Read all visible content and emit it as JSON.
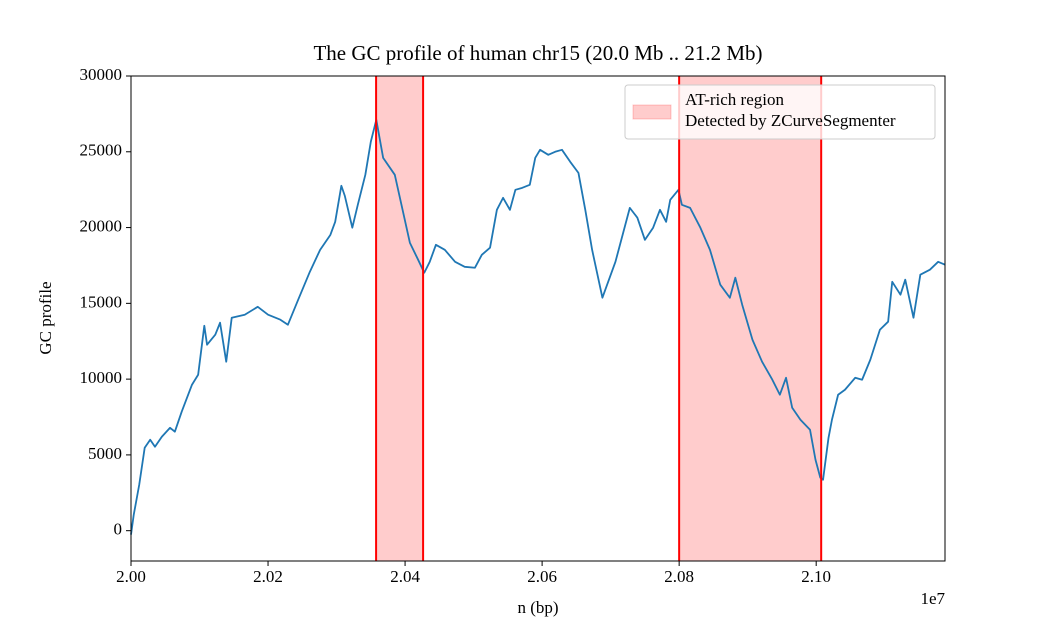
{
  "chart_data": {
    "type": "line",
    "title": "The GC profile of human chr15 (20.0 Mb .. 21.2 Mb)",
    "x_label": "n (bp)",
    "y_label": "GC profile",
    "x_offset_label": "1e7",
    "xlim": [
      20000000,
      21188000
    ],
    "ylim": [
      -2000,
      30000
    ],
    "xticks": [
      {
        "value": 20000000,
        "label": "2.00"
      },
      {
        "value": 20200000,
        "label": "2.02"
      },
      {
        "value": 20400000,
        "label": "2.04"
      },
      {
        "value": 20600000,
        "label": "2.06"
      },
      {
        "value": 20800000,
        "label": "2.08"
      },
      {
        "value": 21000000,
        "label": "2.10"
      }
    ],
    "yticks": [
      0,
      5000,
      10000,
      15000,
      20000,
      25000,
      30000
    ],
    "grid": false,
    "legend_position": "upper right",
    "span_color": "#ff0000",
    "span_label": [
      "AT-rich region",
      "Detected by ZCurveSegmenter"
    ],
    "spans": [
      {
        "x0": 20357700,
        "x1": 20426300
      },
      {
        "x0": 20800000,
        "x1": 21007300
      }
    ],
    "x": [
      20000000,
      20004000,
      20012000,
      20020000,
      20028000,
      20035000,
      20045000,
      20057000,
      20064000,
      20074000,
      20089000,
      20098000,
      20107000,
      20111000,
      20123000,
      20130000,
      20139000,
      20147000,
      20166000,
      20185000,
      20200000,
      20218000,
      20229000,
      20244000,
      20261000,
      20276000,
      20291000,
      20298000,
      20307000,
      20312000,
      20323000,
      20331000,
      20342000,
      20350000,
      20358000,
      20368000,
      20385000,
      20397000,
      20407000,
      20419000,
      20428000,
      20436000,
      20445000,
      20458000,
      20473000,
      20487000,
      20502000,
      20512000,
      20524000,
      20534000,
      20543000,
      20553000,
      20561000,
      20571000,
      20582000,
      20590000,
      20597000,
      20609000,
      20619000,
      20629000,
      20641000,
      20653000,
      20663000,
      20673000,
      20688000,
      20707000,
      20728000,
      20739000,
      20750000,
      20762000,
      20772000,
      20781000,
      20787000,
      20799000,
      20804000,
      20816000,
      20831000,
      20845000,
      20860000,
      20874000,
      20882000,
      20892000,
      20907000,
      20921000,
      20936000,
      20947000,
      20956000,
      20965000,
      20977000,
      20991000,
      20999000,
      21006000,
      21010000,
      21018000,
      21023000,
      21032000,
      21042000,
      21057000,
      21067000,
      21079000,
      21093000,
      21105000,
      21111000,
      21123000,
      21130000,
      21142000,
      21152000,
      21166000,
      21178000,
      21188000
    ],
    "series": [
      {
        "color": "#1f77b4",
        "values": [
          -260,
          1050,
          3030,
          5470,
          6000,
          5540,
          6200,
          6790,
          6530,
          7850,
          9630,
          10290,
          13520,
          12270,
          12930,
          13720,
          11150,
          14050,
          14250,
          14770,
          14250,
          13920,
          13590,
          15240,
          17080,
          18530,
          19520,
          20380,
          22760,
          22100,
          19990,
          21500,
          23480,
          25660,
          27110,
          24600,
          23480,
          21040,
          19000,
          17880,
          17020,
          17740,
          18860,
          18530,
          17740,
          17410,
          17350,
          18200,
          18670,
          21170,
          21960,
          21170,
          22490,
          22620,
          22820,
          24600,
          25130,
          24800,
          25000,
          25130,
          24340,
          23610,
          21170,
          18530,
          15370,
          17740,
          21300,
          20650,
          19190,
          19990,
          21170,
          20380,
          21830,
          22490,
          21500,
          21300,
          19990,
          18530,
          16230,
          15370,
          16690,
          14910,
          12600,
          11150,
          9960,
          8970,
          10090,
          8110,
          7320,
          6660,
          4680,
          3500,
          3360,
          6130,
          7320,
          8970,
          9300,
          10090,
          9960,
          11280,
          13260,
          13790,
          16420,
          15570,
          16560,
          14050,
          16890,
          17220,
          17740,
          17550
        ]
      }
    ]
  }
}
